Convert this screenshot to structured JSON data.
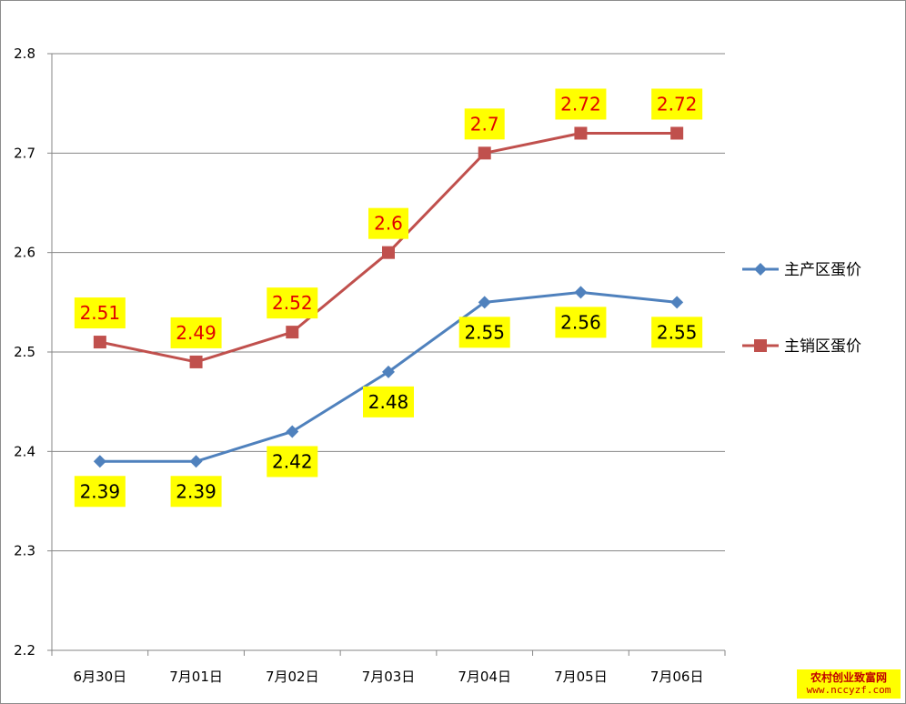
{
  "chart_data": {
    "type": "line",
    "categories": [
      "6月30日",
      "7月01日",
      "7月02日",
      "7月03日",
      "7月04日",
      "7月05日",
      "7月06日"
    ],
    "series": [
      {
        "name": "主产区蛋价",
        "values": [
          2.39,
          2.39,
          2.42,
          2.48,
          2.55,
          2.56,
          2.55
        ],
        "labels": [
          "2.39",
          "2.39",
          "2.42",
          "2.48",
          "2.55",
          "2.56",
          "2.55"
        ],
        "label_positions": [
          "below",
          "below",
          "below",
          "below",
          "below",
          "below",
          "below"
        ],
        "color": "#4f81bd",
        "marker": "diamond",
        "label_text_color": "#000000"
      },
      {
        "name": "主销区蛋价",
        "values": [
          2.51,
          2.49,
          2.52,
          2.6,
          2.7,
          2.72,
          2.72
        ],
        "labels": [
          "2.51",
          "2.49",
          "2.52",
          "2.6",
          "2.7",
          "2.72",
          "2.72"
        ],
        "label_positions": [
          "above",
          "above",
          "above",
          "above",
          "above",
          "above",
          "above"
        ],
        "color": "#c0504d",
        "marker": "square",
        "label_text_color": "#e00000"
      }
    ],
    "yticks": [
      "2.2",
      "2.3",
      "2.4",
      "2.5",
      "2.6",
      "2.7",
      "2.8"
    ],
    "ylim": [
      2.2,
      2.8
    ],
    "grid": true,
    "legend": "right",
    "label_background": "#ffff00",
    "gridline_color": "#868686"
  },
  "watermark": {
    "line1": "农村创业致富网",
    "line2": "www.nccyzf.com"
  }
}
